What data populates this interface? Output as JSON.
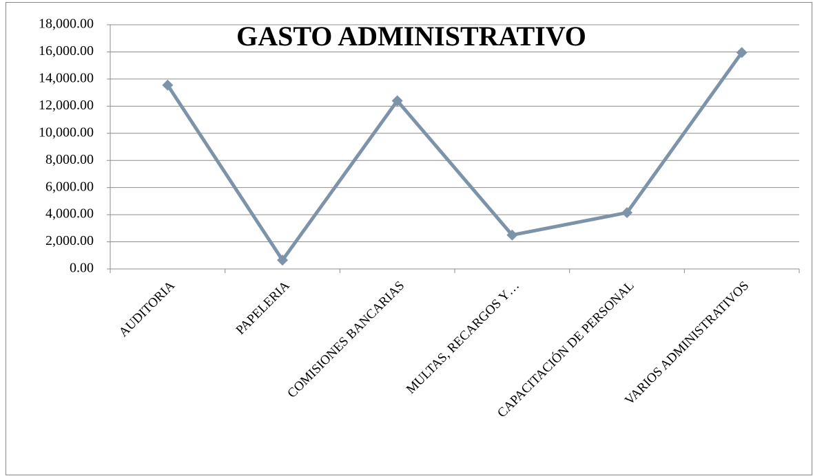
{
  "chart_data": {
    "type": "line",
    "title": "GASTO ADMINISTRATIVO",
    "categories": [
      "AUDITORIA",
      "PAPELERIA",
      "COMISIONES BANCARIAS",
      "MULTAS,  RECARGOS Y…",
      "CAPACITACIÓN DE PERSONAL",
      "VARIOS ADMINISTRATIVOS"
    ],
    "series": [
      {
        "name": "GASTO ADMINISTRATIVO",
        "color": "#7d93a9",
        "values": [
          13550,
          650,
          12400,
          2500,
          4150,
          15950
        ]
      }
    ],
    "ylim": [
      0,
      18000
    ],
    "yticks": [
      {
        "value": 0,
        "label": "0.00"
      },
      {
        "value": 2000,
        "label": "2,000.00"
      },
      {
        "value": 4000,
        "label": "4,000.00"
      },
      {
        "value": 6000,
        "label": "6,000.00"
      },
      {
        "value": 8000,
        "label": "8,000.00"
      },
      {
        "value": 10000,
        "label": "10,000.00"
      },
      {
        "value": 12000,
        "label": "12,000.00"
      },
      {
        "value": 14000,
        "label": "14,000.00"
      },
      {
        "value": 16000,
        "label": "16,000.00"
      },
      {
        "value": 18000,
        "label": "18,000.00"
      }
    ],
    "grid": true
  }
}
